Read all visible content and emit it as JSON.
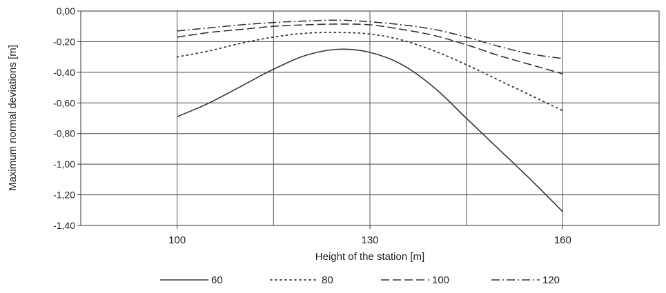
{
  "chart_data": {
    "type": "line",
    "xlabel": "Height of the station [m]",
    "ylabel": "Maximum normal deviations [m]",
    "xlim": [
      85,
      175
    ],
    "ylim": [
      -1.4,
      0
    ],
    "x_ticks": [
      100,
      130,
      160
    ],
    "x_tick_labels": [
      "100",
      "130",
      "160"
    ],
    "y_ticks": [
      0,
      -0.2,
      -0.4,
      -0.6,
      -0.8,
      -1.0,
      -1.2,
      -1.4
    ],
    "y_tick_labels": [
      "0,00",
      "-0,20",
      "-0,40",
      "-0,60",
      "-0,80",
      "-1,00",
      "-1,20",
      "-1,40"
    ],
    "grid": true,
    "legend_position": "bottom",
    "series": [
      {
        "name": "60",
        "color": "#333333",
        "dash": "solid",
        "x": [
          100,
          105,
          110,
          115,
          120,
          125,
          130,
          135,
          140,
          145,
          150,
          155,
          160
        ],
        "y": [
          -0.69,
          -0.6,
          -0.49,
          -0.38,
          -0.29,
          -0.25,
          -0.27,
          -0.35,
          -0.5,
          -0.7,
          -0.9,
          -1.1,
          -1.31
        ]
      },
      {
        "name": "80",
        "color": "#333333",
        "dash": "dotted",
        "x": [
          100,
          105,
          110,
          115,
          120,
          125,
          130,
          135,
          140,
          145,
          150,
          155,
          160
        ],
        "y": [
          -0.3,
          -0.26,
          -0.21,
          -0.17,
          -0.145,
          -0.14,
          -0.15,
          -0.19,
          -0.26,
          -0.35,
          -0.45,
          -0.55,
          -0.65
        ]
      },
      {
        "name": "100",
        "color": "#333333",
        "dash": "dashed",
        "x": [
          100,
          105,
          110,
          115,
          120,
          125,
          130,
          135,
          140,
          145,
          150,
          155,
          160
        ],
        "y": [
          -0.17,
          -0.14,
          -0.12,
          -0.1,
          -0.09,
          -0.085,
          -0.09,
          -0.12,
          -0.16,
          -0.22,
          -0.29,
          -0.35,
          -0.41
        ]
      },
      {
        "name": "120",
        "color": "#333333",
        "dash": "dashdot",
        "x": [
          100,
          105,
          110,
          115,
          120,
          125,
          130,
          135,
          140,
          145,
          150,
          155,
          160
        ],
        "y": [
          -0.13,
          -0.11,
          -0.09,
          -0.075,
          -0.065,
          -0.06,
          -0.07,
          -0.09,
          -0.12,
          -0.17,
          -0.23,
          -0.28,
          -0.31
        ]
      }
    ]
  }
}
